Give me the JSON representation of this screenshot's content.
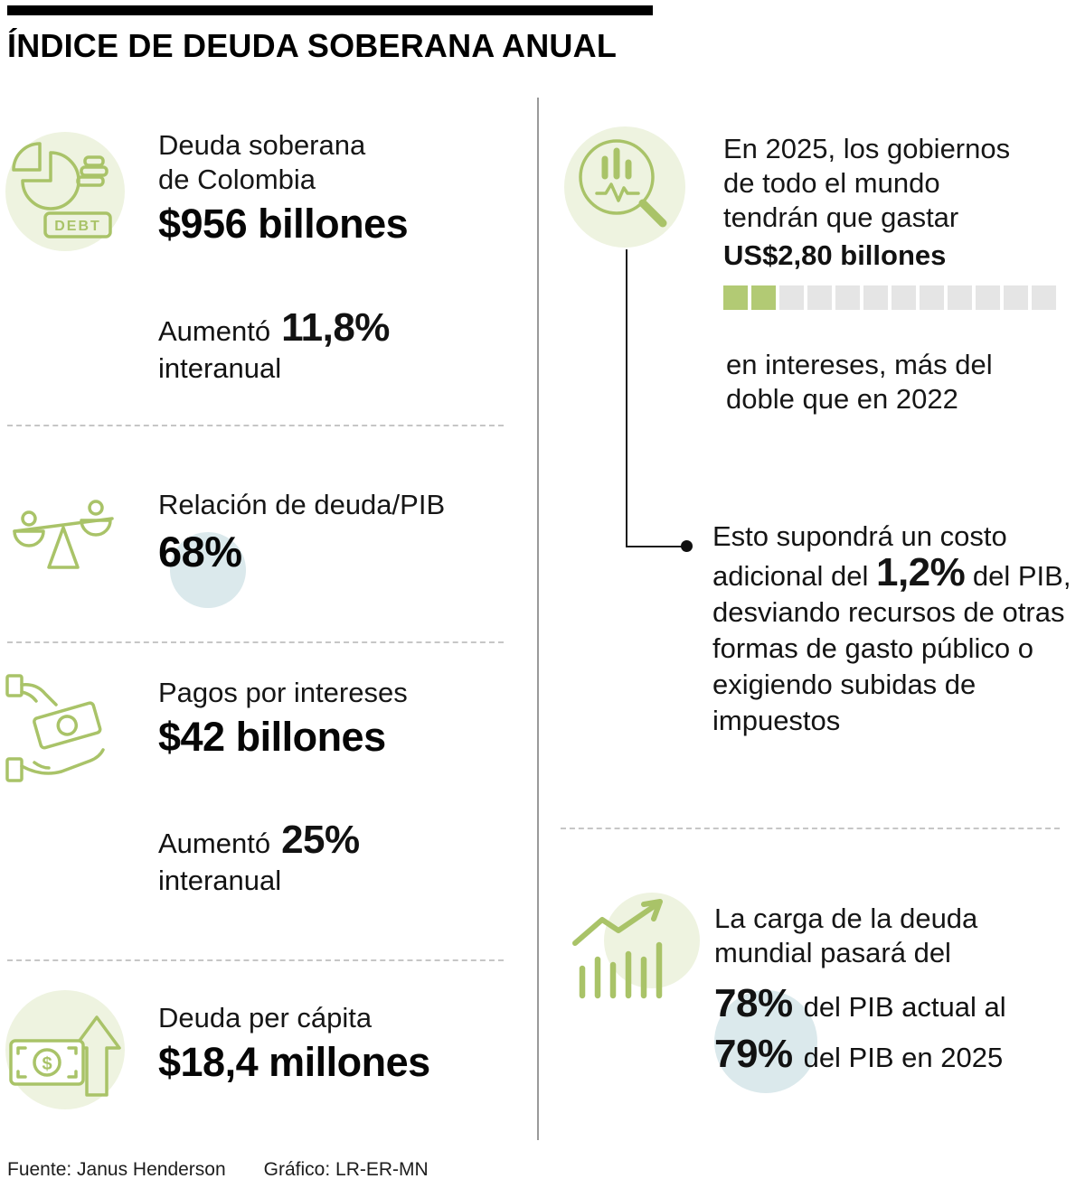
{
  "meta": {
    "title": "ÍNDICE DE DEUDA SOBERANA ANUAL"
  },
  "colors": {
    "accent_green": "#a9c368",
    "fill_green": "#b2ca74",
    "light_green_bg": "#eef3e0",
    "light_blue_bg": "#dbe9ec",
    "square_gray": "#e5e5e5",
    "text": "#121212"
  },
  "icons": {
    "debt_label": "DEBT",
    "dollar": "$"
  },
  "left": {
    "sections": [
      {
        "label1": "Deuda soberana",
        "label2": "de Colombia",
        "value": "$956 billones",
        "change_prefix": "Aumentó",
        "change_value": "11,8%",
        "change_suffix": "interanual"
      },
      {
        "label1": "Relación de deuda/PIB",
        "value": "68%"
      },
      {
        "label1": "Pagos por intereses",
        "value": "$42 billones",
        "change_prefix": "Aumentó",
        "change_value": "25%",
        "change_suffix": "interanual"
      },
      {
        "label1": "Deuda per cápita",
        "value": "$18,4 millones"
      }
    ]
  },
  "right": {
    "spending": {
      "line1": "En 2025, los gobiernos",
      "line2": "de todo el mundo",
      "line3": "tendrán que gastar",
      "amount": "US$2,80 billones",
      "progress": {
        "total": 12,
        "filled": 2
      },
      "note1": "en intereses, más del",
      "note2": "doble que en 2022"
    },
    "cost": {
      "pre": "Esto supondrá un costo adicional del ",
      "big": "1,2%",
      "post": " del PIB, desviando recursos de otras formas de gasto público o exigiendo subidas de impuestos"
    },
    "burden": {
      "line1": "La carga de la deuda",
      "line2": "mundial pasará del",
      "stat1_value": "78%",
      "stat1_text": "del PIB actual al",
      "stat2_value": "79%",
      "stat2_text": "del PIB en 2025"
    }
  },
  "footer": {
    "source": "Fuente: Janus Henderson",
    "credit": "Gráfico: LR-ER-MN"
  },
  "chart_data": {
    "type": "table",
    "title": "ÍNDICE DE DEUDA SOBERANA ANUAL",
    "rows": [
      {
        "metric": "Deuda soberana de Colombia",
        "value": "$956 billones",
        "change_interanual": "11,8%"
      },
      {
        "metric": "Relación de deuda/PIB",
        "value": "68%"
      },
      {
        "metric": "Pagos por intereses",
        "value": "$42 billones",
        "change_interanual": "25%"
      },
      {
        "metric": "Deuda per cápita",
        "value": "$18,4 millones"
      },
      {
        "metric": "Gasto mundial en intereses en 2025",
        "value": "US$2,80 billones",
        "note": "más del doble que en 2022",
        "progress_filled": 2,
        "progress_total": 12
      },
      {
        "metric": "Costo adicional",
        "value": "1,2% del PIB"
      },
      {
        "metric": "Carga de la deuda mundial",
        "value_actual": "78% del PIB",
        "value_2025": "79% del PIB"
      }
    ],
    "source": "Janus Henderson",
    "credit": "LR-ER-MN"
  }
}
